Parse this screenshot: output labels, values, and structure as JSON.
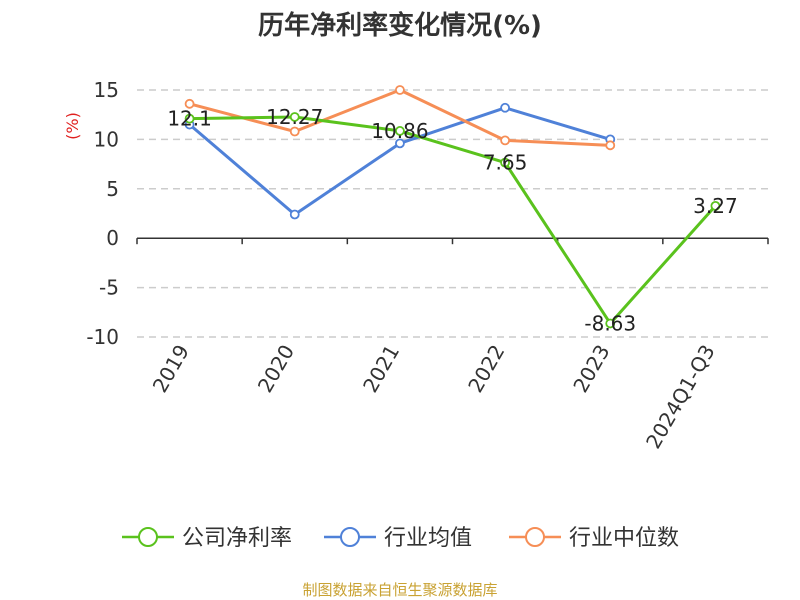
{
  "chart_data": {
    "type": "line",
    "title": "历年净利率变化情况(%)",
    "ylabel": "(%)",
    "xlabel": "",
    "ylim": [
      -10,
      15
    ],
    "yticks": [
      15,
      10,
      5,
      0,
      -5,
      -10
    ],
    "categories": [
      "2019",
      "2020",
      "2021",
      "2022",
      "2023",
      "2024Q1-Q3"
    ],
    "grid": true,
    "legend_position": "bottom",
    "series": [
      {
        "name": "公司净利率",
        "color": "#5ac21d",
        "values": [
          12.1,
          12.27,
          10.86,
          7.65,
          -8.63,
          3.27
        ],
        "labels": [
          "12.1",
          "12.27",
          "10.86",
          "7.65",
          "-8.63",
          "3.27"
        ]
      },
      {
        "name": "行业均值",
        "color": "#4f81d8",
        "values": [
          11.5,
          2.4,
          9.6,
          13.2,
          10.0,
          null
        ]
      },
      {
        "name": "行业中位数",
        "color": "#f68e56",
        "values": [
          13.6,
          10.8,
          15.0,
          9.9,
          9.4,
          null
        ]
      }
    ]
  },
  "colors": {
    "ylabel": "#e0201f",
    "footer": "#c9a233",
    "axis": "#333333",
    "grid": "#cccccc"
  },
  "footer": "制图数据来自恒生聚源数据库"
}
